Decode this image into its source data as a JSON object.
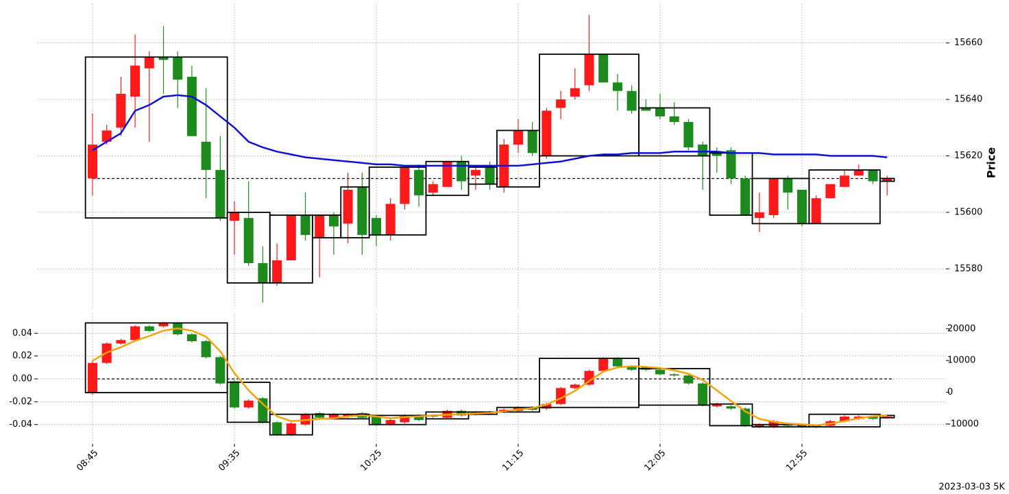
{
  "chart_data": [
    {
      "type": "candlestick",
      "ylabel": "Price",
      "y_axis_side": "right",
      "grid": true,
      "up_color": "#fe1a1a",
      "down_color": "#1c8a1c",
      "ylim": [
        15566,
        15674
      ],
      "yticks": [
        15580,
        15600,
        15620,
        15640,
        15660
      ],
      "candles": {
        "open": [
          15612,
          15625,
          15630,
          15641,
          15651,
          15655,
          15655,
          15648,
          15625,
          15615,
          15597,
          15598,
          15582,
          15575,
          15583,
          15599,
          15591,
          15599,
          15596,
          15609,
          15598,
          15592,
          15603,
          15615,
          15607,
          15609,
          15618,
          15613,
          15616,
          15609,
          15624,
          15629,
          15620,
          15637,
          15641,
          15645,
          15656,
          15646,
          15643,
          15637,
          15637,
          15634,
          15632,
          15624,
          15621,
          15622,
          15612,
          15598,
          15599,
          15612,
          15608,
          15596,
          15605,
          15609,
          15613,
          15615,
          15611
        ],
        "high": [
          15635,
          15631,
          15648,
          15663,
          15657,
          15666,
          15657,
          15652,
          15644,
          15627,
          15604,
          15611,
          15588,
          15589,
          15599,
          15607,
          15599,
          15600,
          15614,
          15614,
          15599,
          15605,
          15616,
          15617,
          15611,
          15618,
          15620,
          15616,
          15618,
          15626,
          15633,
          15632,
          15637,
          15643,
          15651,
          15670,
          15656,
          15649,
          15645,
          15640,
          15642,
          15639,
          15633,
          15625,
          15623,
          15623,
          15613,
          15607,
          15612,
          15613,
          15608,
          15606,
          15610,
          15615,
          15617,
          15615,
          15613
        ],
        "low": [
          15606,
          15624,
          15627,
          15630,
          15625,
          15642,
          15637,
          15627,
          15605,
          15597,
          15585,
          15581,
          15568,
          15574,
          15583,
          15590,
          15577,
          15585,
          15589,
          15585,
          15588,
          15590,
          15601,
          15602,
          15606,
          15609,
          15608,
          15608,
          15608,
          15607,
          15621,
          15620,
          15619,
          15633,
          15640,
          15643,
          15646,
          15636,
          15635,
          15636,
          15633,
          15631,
          15622,
          15608,
          15614,
          15610,
          15599,
          15593,
          15598,
          15601,
          15595,
          15596,
          15605,
          15609,
          15613,
          15610,
          15606
        ],
        "close": [
          15624,
          15629,
          15642,
          15652,
          15655,
          15654,
          15647,
          15627,
          15615,
          15598,
          15600,
          15582,
          15575,
          15583,
          15599,
          15592,
          15599,
          15595,
          15608,
          15592,
          15592,
          15603,
          15616,
          15606,
          15610,
          15618,
          15611,
          15615,
          15610,
          15624,
          15629,
          15621,
          15636,
          15640,
          15644,
          15656,
          15646,
          15643,
          15636,
          15636,
          15634,
          15632,
          15623,
          15620,
          15620,
          15612,
          15599,
          15600,
          15612,
          15607,
          15596,
          15605,
          15610,
          15613,
          15615,
          15611,
          15612
        ]
      },
      "series": [
        {
          "color": "#1010d0",
          "values": [
            15622,
            15625,
            15628,
            15636,
            15638,
            15641,
            15641.5,
            15641,
            15638,
            15634,
            15630,
            15625,
            15623,
            15621.5,
            15620.5,
            15619.5,
            15619,
            15618.5,
            15618,
            15617.5,
            15617,
            15617,
            15616.5,
            15616.5,
            15616.5,
            15616.5,
            15616.5,
            15616.5,
            15616.5,
            15616.5,
            15616.5,
            15617,
            15617.5,
            15618,
            15619,
            15620,
            15620.5,
            15620.5,
            15621,
            15621,
            15621,
            15621.5,
            15621.5,
            15621.5,
            15621.5,
            15621,
            15621,
            15621,
            15620.5,
            15620.5,
            15620.5,
            15620.5,
            15620,
            15620,
            15620,
            15620,
            15619.5
          ]
        }
      ],
      "hline": 15612,
      "boxes": {
        "start": [
          0,
          10,
          13,
          16,
          18,
          20,
          24,
          27,
          29,
          32,
          39,
          44,
          47,
          51,
          56
        ],
        "end": [
          9,
          12,
          15,
          17,
          19,
          23,
          26,
          28,
          31,
          38,
          43,
          46,
          50,
          55,
          56
        ],
        "high": [
          15655,
          15600,
          15599,
          15599,
          15609,
          15616,
          15618,
          15616,
          15629,
          15656,
          15637,
          15621,
          15612,
          15615,
          15612
        ],
        "low": [
          15598,
          15575,
          15575,
          15591,
          15591,
          15592,
          15606,
          15610,
          15609,
          15620,
          15620,
          15599,
          15596,
          15596,
          15611
        ]
      }
    },
    {
      "type": "candlestick",
      "y_axis_side": "left",
      "grid": true,
      "up_color": "#fe1a1a",
      "down_color": "#1c8a1c",
      "categories": [
        "08:45",
        null,
        null,
        null,
        null,
        null,
        null,
        null,
        null,
        null,
        "09:35",
        null,
        null,
        null,
        null,
        null,
        null,
        null,
        null,
        null,
        "10:25",
        null,
        null,
        null,
        null,
        null,
        null,
        null,
        null,
        null,
        "11:15",
        null,
        null,
        null,
        null,
        null,
        null,
        null,
        null,
        null,
        "12:05",
        null,
        null,
        null,
        null,
        null,
        null,
        null,
        null,
        null,
        "12:55",
        null,
        null,
        null,
        null,
        null,
        null
      ],
      "ylim": [
        -0.057,
        0.057
      ],
      "yticks": [
        -0.04,
        -0.02,
        {
          "value": 0,
          "label": "0.00"
        },
        0.02,
        0.04
      ],
      "y2lim": [
        -16300,
        24700
      ],
      "y2ticks": [
        -10000,
        0,
        10000,
        20000
      ],
      "candles": {
        "open": [
          -0.012,
          0.014,
          0.031,
          0.034,
          0.046,
          0.046,
          0.049,
          0.039,
          0.033,
          0.019,
          -0.002,
          -0.025,
          -0.017,
          -0.038,
          -0.049,
          -0.04,
          -0.03,
          -0.034,
          -0.033,
          -0.03,
          -0.033,
          -0.04,
          -0.038,
          -0.032,
          -0.032,
          -0.034,
          -0.028,
          -0.029,
          -0.029,
          -0.029,
          -0.028,
          -0.025,
          -0.026,
          -0.022,
          -0.008,
          -0.005,
          0.007,
          0.018,
          0.011,
          0.01,
          0.008,
          0.004,
          0.003,
          -0.004,
          -0.024,
          -0.024,
          -0.026,
          -0.042,
          -0.042,
          -0.04,
          -0.04,
          -0.041,
          -0.041,
          -0.037,
          -0.035,
          -0.033,
          -0.034
        ],
        "high": [
          0.016,
          0.032,
          0.035,
          0.047,
          0.047,
          0.05,
          0.05,
          0.04,
          0.034,
          0.02,
          -0.001,
          -0.018,
          -0.016,
          -0.037,
          -0.038,
          -0.03,
          -0.029,
          -0.03,
          -0.03,
          -0.029,
          -0.032,
          -0.035,
          -0.031,
          -0.031,
          -0.031,
          -0.027,
          -0.027,
          -0.028,
          -0.028,
          -0.026,
          -0.024,
          -0.024,
          -0.021,
          -0.007,
          -0.004,
          0.008,
          0.019,
          0.019,
          0.012,
          0.011,
          0.009,
          0.005,
          0.004,
          -0.003,
          -0.021,
          -0.023,
          -0.025,
          -0.039,
          -0.036,
          -0.039,
          -0.039,
          -0.04,
          -0.036,
          -0.032,
          -0.032,
          -0.032,
          -0.032
        ],
        "low": [
          -0.014,
          0.013,
          0.03,
          0.033,
          0.041,
          0.045,
          0.038,
          0.032,
          0.018,
          -0.005,
          -0.026,
          -0.026,
          -0.039,
          -0.05,
          -0.05,
          -0.041,
          -0.035,
          -0.035,
          -0.034,
          -0.035,
          -0.041,
          -0.041,
          -0.039,
          -0.037,
          -0.034,
          -0.035,
          -0.033,
          -0.032,
          -0.031,
          -0.03,
          -0.029,
          -0.028,
          -0.027,
          -0.023,
          -0.009,
          -0.006,
          0.006,
          0.01,
          0.007,
          0.007,
          0.003,
          0.002,
          -0.005,
          -0.024,
          -0.025,
          -0.027,
          -0.042,
          -0.043,
          -0.043,
          -0.042,
          -0.043,
          -0.043,
          -0.042,
          -0.038,
          -0.036,
          -0.036,
          -0.035
        ],
        "close": [
          0.014,
          0.031,
          0.034,
          0.046,
          0.042,
          0.049,
          0.039,
          0.033,
          0.019,
          -0.004,
          -0.025,
          -0.019,
          -0.038,
          -0.049,
          -0.039,
          -0.031,
          -0.034,
          -0.031,
          -0.031,
          -0.034,
          -0.04,
          -0.036,
          -0.032,
          -0.036,
          -0.033,
          -0.028,
          -0.032,
          -0.031,
          -0.03,
          -0.027,
          -0.025,
          -0.027,
          -0.022,
          -0.008,
          -0.005,
          0.007,
          0.018,
          0.011,
          0.008,
          0.008,
          0.004,
          0.003,
          -0.004,
          -0.023,
          -0.022,
          -0.026,
          -0.041,
          -0.04,
          -0.037,
          -0.041,
          -0.042,
          -0.042,
          -0.037,
          -0.033,
          -0.033,
          -0.035,
          -0.033
        ]
      },
      "series": [
        {
          "color": "#f5a30c",
          "axis": "y2",
          "values": [
            9900,
            12500,
            14200,
            16200,
            17700,
            19400,
            20100,
            19400,
            17500,
            12900,
            6000,
            600,
            -3700,
            -7600,
            -9100,
            -8800,
            -8400,
            -8200,
            -7600,
            -7300,
            -7600,
            -8200,
            -7800,
            -7600,
            -7300,
            -7100,
            -6900,
            -6700,
            -6500,
            -6000,
            -5400,
            -5000,
            -3900,
            -1900,
            400,
            3500,
            6500,
            7800,
            8200,
            8000,
            7600,
            6900,
            5800,
            3900,
            600,
            -2800,
            -6000,
            -8400,
            -9300,
            -9900,
            -10100,
            -10400,
            -9900,
            -9100,
            -8200,
            -7600,
            -7300
          ]
        }
      ],
      "hline": 0,
      "boxes": {
        "start": [
          0,
          10,
          13,
          16,
          20,
          24,
          27,
          29,
          32,
          39,
          44,
          47,
          51,
          56
        ],
        "end": [
          9,
          12,
          15,
          19,
          23,
          26,
          28,
          31,
          38,
          43,
          46,
          50,
          55,
          56
        ],
        "high": [
          0.049,
          -0.003,
          -0.031,
          -0.031,
          -0.032,
          -0.029,
          -0.029,
          -0.025,
          0.018,
          0.009,
          -0.022,
          -0.04,
          -0.031,
          -0.032
        ],
        "low": [
          -0.012,
          -0.038,
          -0.049,
          -0.035,
          -0.04,
          -0.035,
          -0.031,
          -0.029,
          -0.025,
          -0.023,
          -0.041,
          -0.042,
          -0.042,
          -0.034
        ]
      }
    }
  ],
  "footer": "2023-03-03 5K"
}
